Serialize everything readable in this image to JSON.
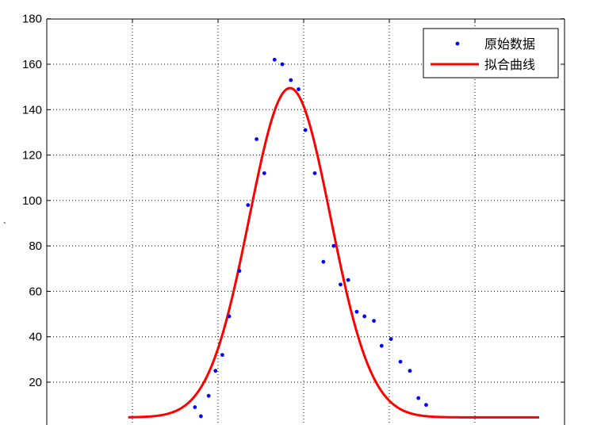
{
  "stray_mark": "`",
  "chart_data": {
    "type": "scatter",
    "ylim": [
      4,
      180
    ],
    "xlim": [
      -1,
      5
    ],
    "yticks": [
      20,
      40,
      60,
      80,
      100,
      120,
      140,
      160,
      180
    ],
    "xgrid": [
      0,
      1,
      2,
      3,
      4
    ],
    "grid": "dotted",
    "legend_position": "top-right",
    "series": [
      {
        "name": "原始数据",
        "kind": "markers",
        "color": "#0000ff",
        "points": [
          [
            0.73,
            9
          ],
          [
            0.8,
            5
          ],
          [
            0.89,
            14
          ],
          [
            0.97,
            25
          ],
          [
            1.05,
            32
          ],
          [
            1.13,
            49
          ],
          [
            1.25,
            69
          ],
          [
            1.35,
            98
          ],
          [
            1.45,
            127
          ],
          [
            1.54,
            112
          ],
          [
            1.66,
            162
          ],
          [
            1.75,
            160
          ],
          [
            1.85,
            153
          ],
          [
            1.94,
            149
          ],
          [
            2.02,
            131
          ],
          [
            2.13,
            112
          ],
          [
            2.23,
            73
          ],
          [
            2.35,
            80
          ],
          [
            2.43,
            63
          ],
          [
            2.52,
            65
          ],
          [
            2.62,
            51
          ],
          [
            2.71,
            49
          ],
          [
            2.82,
            47
          ],
          [
            2.91,
            36
          ],
          [
            3.02,
            39
          ],
          [
            3.13,
            29
          ],
          [
            3.24,
            25
          ],
          [
            3.34,
            13
          ],
          [
            3.43,
            10
          ]
        ]
      },
      {
        "name": "拟合曲线",
        "kind": "line",
        "color": "#ff0000",
        "gaussian": {
          "baseline": 4.5,
          "amplitude": 145,
          "center": 1.84,
          "sigma": 0.475
        },
        "xrange": [
          -0.05,
          4.75
        ]
      }
    ]
  }
}
